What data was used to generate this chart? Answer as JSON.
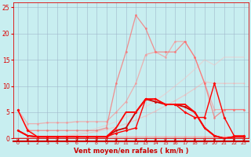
{
  "x_ticks": [
    0,
    1,
    2,
    3,
    4,
    5,
    6,
    7,
    8,
    9,
    10,
    11,
    12,
    13,
    14,
    15,
    16,
    17,
    18,
    19,
    20,
    21,
    22,
    23
  ],
  "xlabel": "Vent moyen/en rafales ( km/h )",
  "ylim": [
    0,
    26
  ],
  "xlim": [
    -0.5,
    23.5
  ],
  "yticks": [
    0,
    5,
    10,
    15,
    20,
    25
  ],
  "background_color": "#c8eef0",
  "grid_color": "#a0b8cc",
  "line_color": "#ff0000",
  "tick_color": "#dd0000",
  "xlabel_color": "#cc0000",
  "lines": [
    {
      "y": [
        5.4,
        1.8,
        0.3,
        0.3,
        0.3,
        0.3,
        0.3,
        0.3,
        0.3,
        0.3,
        0.3,
        0.3,
        0.3,
        0.3,
        0.3,
        0.3,
        0.3,
        0.3,
        0.3,
        0.3,
        0.3,
        0.3,
        0.3,
        0.3
      ],
      "color": "#ff9999",
      "alpha": 0.75,
      "lw": 0.9,
      "marker": "o",
      "ms": 2.0
    },
    {
      "y": [
        0.0,
        0.0,
        0.0,
        0.0,
        0.2,
        0.4,
        0.7,
        1.0,
        1.3,
        1.7,
        2.2,
        2.8,
        3.5,
        4.3,
        5.2,
        6.2,
        7.2,
        8.3,
        9.5,
        10.8,
        10.5,
        10.5,
        10.5,
        10.5
      ],
      "color": "#ffaaaa",
      "alpha": 0.5,
      "lw": 0.9,
      "marker": "o",
      "ms": 1.5
    },
    {
      "y": [
        0.0,
        0.0,
        0.0,
        0.1,
        0.3,
        0.6,
        1.0,
        1.4,
        1.9,
        2.5,
        3.2,
        4.0,
        4.9,
        6.0,
        7.2,
        8.5,
        10.0,
        11.5,
        13.2,
        15.0,
        14.0,
        15.5,
        15.5,
        15.5
      ],
      "color": "#ffbbbb",
      "alpha": 0.45,
      "lw": 0.9,
      "marker": null,
      "ms": 0
    },
    {
      "y": [
        5.4,
        2.8,
        2.8,
        3.0,
        3.0,
        3.0,
        3.2,
        3.2,
        3.2,
        3.2,
        5.0,
        7.0,
        10.5,
        16.0,
        16.5,
        15.5,
        18.5,
        18.5,
        15.5,
        10.5,
        5.5,
        5.5,
        5.5,
        5.5
      ],
      "color": "#ff8888",
      "alpha": 0.6,
      "lw": 0.9,
      "marker": "o",
      "ms": 2.0
    },
    {
      "y": [
        5.4,
        1.5,
        1.5,
        1.5,
        1.5,
        1.5,
        1.5,
        1.5,
        1.5,
        2.0,
        10.5,
        16.5,
        23.5,
        21.0,
        16.5,
        16.5,
        16.5,
        18.5,
        15.5,
        10.5,
        4.0,
        5.5,
        5.5,
        5.5
      ],
      "color": "#ff6666",
      "alpha": 0.7,
      "lw": 0.9,
      "marker": "o",
      "ms": 2.0
    },
    {
      "y": [
        1.5,
        0.5,
        0.3,
        0.3,
        0.3,
        0.3,
        0.3,
        0.3,
        0.3,
        0.3,
        1.5,
        2.0,
        5.0,
        7.5,
        7.0,
        6.5,
        6.5,
        6.0,
        5.0,
        2.0,
        0.5,
        0.0,
        0.3,
        0.3
      ],
      "color": "#cc0000",
      "alpha": 1.0,
      "lw": 1.3,
      "marker": "o",
      "ms": 2.0
    },
    {
      "y": [
        1.5,
        0.5,
        0.3,
        0.3,
        0.3,
        0.3,
        0.3,
        0.3,
        0.3,
        0.3,
        2.0,
        5.0,
        5.0,
        7.5,
        7.5,
        6.5,
        6.5,
        6.5,
        5.0,
        2.0,
        0.5,
        0.0,
        0.3,
        0.3
      ],
      "color": "#ff0000",
      "alpha": 1.0,
      "lw": 1.3,
      "marker": "s",
      "ms": 2.0
    },
    {
      "y": [
        5.4,
        1.5,
        0.3,
        0.3,
        0.3,
        0.3,
        0.3,
        0.3,
        0.3,
        0.3,
        1.0,
        1.5,
        2.0,
        7.5,
        7.5,
        6.5,
        6.5,
        5.0,
        4.0,
        4.0,
        10.5,
        4.0,
        0.5,
        0.5
      ],
      "color": "#ff0000",
      "alpha": 1.0,
      "lw": 1.0,
      "marker": "D",
      "ms": 2.0
    }
  ],
  "arrow_color": "#cc0000",
  "red_hline_y": 0,
  "red_hline_color": "#cc0000",
  "bottom_line_y": -0.5
}
